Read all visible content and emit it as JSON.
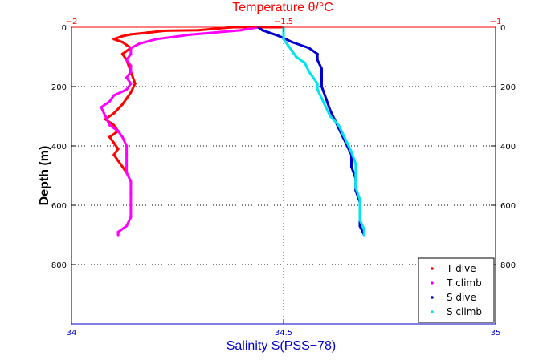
{
  "chart_data": {
    "type": "scatter",
    "title": "Temperature θ/°C",
    "xlabel": "Salinity S(PSS−78)",
    "ylabel": "Depth (m)",
    "x_bottom": {
      "range": [
        34,
        35
      ],
      "ticks": [
        "34",
        "34.5",
        "35"
      ]
    },
    "x_top": {
      "range": [
        -2,
        -1
      ],
      "ticks": [
        "−2",
        "−1.5",
        "−1"
      ]
    },
    "y": {
      "range": [
        0,
        1000
      ],
      "reversed": true,
      "ticks": [
        "0",
        "200",
        "400",
        "600",
        "800"
      ]
    },
    "grid": "dotted",
    "legend_position": "bottom-right",
    "colors": {
      "t_dive": "#ff0000",
      "t_climb": "#ff00ff",
      "s_dive": "#0000cc",
      "s_climb": "#00e5ee",
      "temperature_axis": "#ff0000",
      "salinity_axis": "#0000cc"
    },
    "series": [
      {
        "name": "T dive",
        "axis": "temperature",
        "color": "#ff0000",
        "points": [
          [
            -1.5,
            0
          ],
          [
            -1.62,
            0
          ],
          [
            -1.66,
            5
          ],
          [
            -1.7,
            10
          ],
          [
            -1.78,
            12
          ],
          [
            -1.82,
            18
          ],
          [
            -1.86,
            24
          ],
          [
            -1.88,
            30
          ],
          [
            -1.9,
            40
          ],
          [
            -1.88,
            50
          ],
          [
            -1.87,
            60
          ],
          [
            -1.86,
            70
          ],
          [
            -1.88,
            90
          ],
          [
            -1.87,
            110
          ],
          [
            -1.86,
            150
          ],
          [
            -1.85,
            190
          ],
          [
            -1.86,
            220
          ],
          [
            -1.88,
            260
          ],
          [
            -1.9,
            290
          ],
          [
            -1.92,
            310
          ],
          [
            -1.9,
            330
          ],
          [
            -1.89,
            350
          ],
          [
            -1.91,
            370
          ],
          [
            -1.9,
            390
          ],
          [
            -1.89,
            410
          ],
          [
            -1.9,
            430
          ],
          [
            -1.89,
            450
          ],
          [
            -1.88,
            470
          ],
          [
            -1.87,
            490
          ]
        ]
      },
      {
        "name": "T climb",
        "axis": "temperature",
        "color": "#ff00ff",
        "points": [
          [
            -1.89,
            700
          ],
          [
            -1.89,
            690
          ],
          [
            -1.87,
            670
          ],
          [
            -1.86,
            640
          ],
          [
            -1.86,
            600
          ],
          [
            -1.86,
            560
          ],
          [
            -1.86,
            520
          ],
          [
            -1.87,
            490
          ],
          [
            -1.87,
            460
          ],
          [
            -1.87,
            430
          ],
          [
            -1.87,
            400
          ],
          [
            -1.88,
            370
          ],
          [
            -1.89,
            350
          ],
          [
            -1.91,
            330
          ],
          [
            -1.92,
            300
          ],
          [
            -1.93,
            270
          ],
          [
            -1.91,
            250
          ],
          [
            -1.9,
            230
          ],
          [
            -1.87,
            210
          ],
          [
            -1.86,
            190
          ],
          [
            -1.87,
            170
          ],
          [
            -1.86,
            150
          ],
          [
            -1.86,
            130
          ],
          [
            -1.87,
            110
          ],
          [
            -1.86,
            90
          ],
          [
            -1.86,
            70
          ],
          [
            -1.84,
            55
          ],
          [
            -1.8,
            40
          ],
          [
            -1.72,
            25
          ],
          [
            -1.6,
            10
          ],
          [
            -1.56,
            0
          ]
        ]
      },
      {
        "name": "S dive",
        "axis": "salinity",
        "color": "#0000cc",
        "points": [
          [
            34.44,
            0
          ],
          [
            34.45,
            10
          ],
          [
            34.49,
            30
          ],
          [
            34.52,
            50
          ],
          [
            34.56,
            70
          ],
          [
            34.58,
            90
          ],
          [
            34.58,
            110
          ],
          [
            34.59,
            140
          ],
          [
            34.59,
            170
          ],
          [
            34.59,
            200
          ],
          [
            34.6,
            240
          ],
          [
            34.61,
            280
          ],
          [
            34.62,
            310
          ],
          [
            34.63,
            340
          ],
          [
            34.64,
            370
          ],
          [
            34.65,
            400
          ],
          [
            34.66,
            430
          ],
          [
            34.66,
            470
          ],
          [
            34.67,
            510
          ],
          [
            34.67,
            550
          ],
          [
            34.68,
            590
          ],
          [
            34.68,
            630
          ],
          [
            34.68,
            670
          ],
          [
            34.69,
            700
          ]
        ]
      },
      {
        "name": "S climb",
        "axis": "salinity",
        "color": "#00e5ee",
        "points": [
          [
            34.69,
            700
          ],
          [
            34.69,
            680
          ],
          [
            34.68,
            650
          ],
          [
            34.68,
            620
          ],
          [
            34.68,
            580
          ],
          [
            34.67,
            540
          ],
          [
            34.67,
            500
          ],
          [
            34.67,
            460
          ],
          [
            34.66,
            420
          ],
          [
            34.65,
            390
          ],
          [
            34.64,
            360
          ],
          [
            34.63,
            330
          ],
          [
            34.61,
            300
          ],
          [
            34.6,
            270
          ],
          [
            34.59,
            240
          ],
          [
            34.58,
            210
          ],
          [
            34.58,
            190
          ],
          [
            34.57,
            170
          ],
          [
            34.56,
            150
          ],
          [
            34.55,
            120
          ],
          [
            34.53,
            100
          ],
          [
            34.52,
            80
          ],
          [
            34.51,
            60
          ],
          [
            34.5,
            40
          ],
          [
            34.5,
            20
          ],
          [
            34.5,
            0
          ]
        ]
      }
    ]
  }
}
